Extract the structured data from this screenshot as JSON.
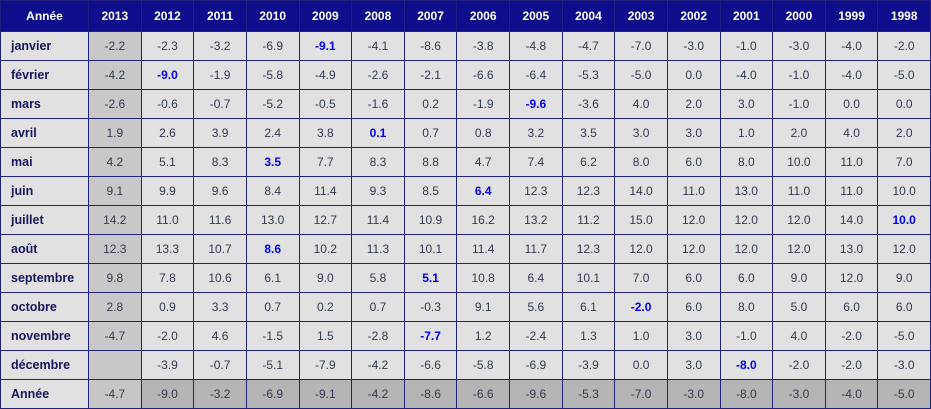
{
  "chart_data": {
    "type": "table",
    "title": "",
    "corner_label": "Année",
    "columns": [
      "2013",
      "2012",
      "2011",
      "2010",
      "2009",
      "2008",
      "2007",
      "2006",
      "2005",
      "2004",
      "2003",
      "2002",
      "2001",
      "2000",
      "1999",
      "1998"
    ],
    "rows": [
      {
        "label": "janvier",
        "values": [
          -2.2,
          -2.3,
          -3.2,
          -6.9,
          -9.1,
          -4.1,
          -8.6,
          -3.8,
          -4.8,
          -4.7,
          -7.0,
          -3.0,
          -1.0,
          -3.0,
          -4.0,
          -2.0
        ],
        "min_col": 4,
        "footer": false
      },
      {
        "label": "février",
        "values": [
          -4.2,
          -9.0,
          -1.9,
          -5.8,
          -4.9,
          -2.6,
          -2.1,
          -6.6,
          -6.4,
          -5.3,
          -5.0,
          0.0,
          -4.0,
          -1.0,
          -4.0,
          -5.0
        ],
        "min_col": 1,
        "footer": false
      },
      {
        "label": "mars",
        "values": [
          -2.6,
          -0.6,
          -0.7,
          -5.2,
          -0.5,
          -1.6,
          0.2,
          -1.9,
          -9.6,
          -3.6,
          4.0,
          2.0,
          3.0,
          -1.0,
          0.0,
          0.0
        ],
        "min_col": 8,
        "footer": false
      },
      {
        "label": "avril",
        "values": [
          1.9,
          2.6,
          3.9,
          2.4,
          3.8,
          0.1,
          0.7,
          0.8,
          3.2,
          3.5,
          3.0,
          3.0,
          1.0,
          2.0,
          4.0,
          2.0
        ],
        "min_col": 5,
        "footer": false
      },
      {
        "label": "mai",
        "values": [
          4.2,
          5.1,
          8.3,
          3.5,
          7.7,
          8.3,
          8.8,
          4.7,
          7.4,
          6.2,
          8.0,
          6.0,
          8.0,
          10.0,
          11.0,
          7.0
        ],
        "min_col": 3,
        "footer": false
      },
      {
        "label": "juin",
        "values": [
          9.1,
          9.9,
          9.6,
          8.4,
          11.4,
          9.3,
          8.5,
          6.4,
          12.3,
          12.3,
          14.0,
          11.0,
          13.0,
          11.0,
          11.0,
          10.0
        ],
        "min_col": 7,
        "footer": false
      },
      {
        "label": "juillet",
        "values": [
          14.2,
          11.0,
          11.6,
          13.0,
          12.7,
          11.4,
          10.9,
          16.2,
          13.2,
          11.2,
          15.0,
          12.0,
          12.0,
          12.0,
          14.0,
          10.0
        ],
        "min_col": 15,
        "footer": false
      },
      {
        "label": "août",
        "values": [
          12.3,
          13.3,
          10.7,
          8.6,
          10.2,
          11.3,
          10.1,
          11.4,
          11.7,
          12.3,
          12.0,
          12.0,
          12.0,
          12.0,
          13.0,
          12.0
        ],
        "min_col": 3,
        "footer": false
      },
      {
        "label": "septembre",
        "values": [
          9.8,
          7.8,
          10.6,
          6.1,
          9.0,
          5.8,
          5.1,
          10.8,
          6.4,
          10.1,
          7.0,
          6.0,
          6.0,
          9.0,
          12.0,
          9.0
        ],
        "min_col": 6,
        "footer": false
      },
      {
        "label": "octobre",
        "values": [
          2.8,
          0.9,
          3.3,
          0.7,
          0.2,
          0.7,
          -0.3,
          9.1,
          5.6,
          6.1,
          -2.0,
          6.0,
          8.0,
          5.0,
          6.0,
          6.0
        ],
        "min_col": 10,
        "footer": false
      },
      {
        "label": "novembre",
        "values": [
          -4.7,
          -2.0,
          4.6,
          -1.5,
          1.5,
          -2.8,
          -7.7,
          1.2,
          -2.4,
          1.3,
          1.0,
          3.0,
          -1.0,
          4.0,
          -2.0,
          -5.0
        ],
        "min_col": 6,
        "footer": false
      },
      {
        "label": "décembre",
        "values": [
          null,
          -3.9,
          -0.7,
          -5.1,
          -7.9,
          -4.2,
          -6.6,
          -5.8,
          -6.9,
          -3.9,
          0.0,
          3.0,
          -8.0,
          -2.0,
          -2.0,
          -3.0
        ],
        "min_col": 12,
        "footer": false
      },
      {
        "label": "Année",
        "values": [
          -4.7,
          -9.0,
          -3.2,
          -6.9,
          -9.1,
          -4.2,
          -8.6,
          -6.6,
          -9.6,
          -5.3,
          -7.0,
          -3.0,
          -8.0,
          -3.0,
          -4.0,
          -5.0
        ],
        "min_col": null,
        "footer": true
      }
    ],
    "layout_hints": {
      "value_format": "one_decimal",
      "highlight_meaning": "blue bold value = minimum of the row",
      "shaded_column": "2013",
      "shaded_footer_row": "Année"
    }
  },
  "colors": {
    "header_bg": "#0e0e8c",
    "header_text": "#ffffff",
    "grid": "#21217c",
    "cell_bg": "#e1e1e1",
    "col_2013_bg": "#c8c8c8",
    "footer_bg": "#b5b5b5",
    "footer_2013_bg": "#c6c6c6",
    "value_text": "#323a52",
    "label_text": "#16165c",
    "min_text": "#0000ee"
  }
}
